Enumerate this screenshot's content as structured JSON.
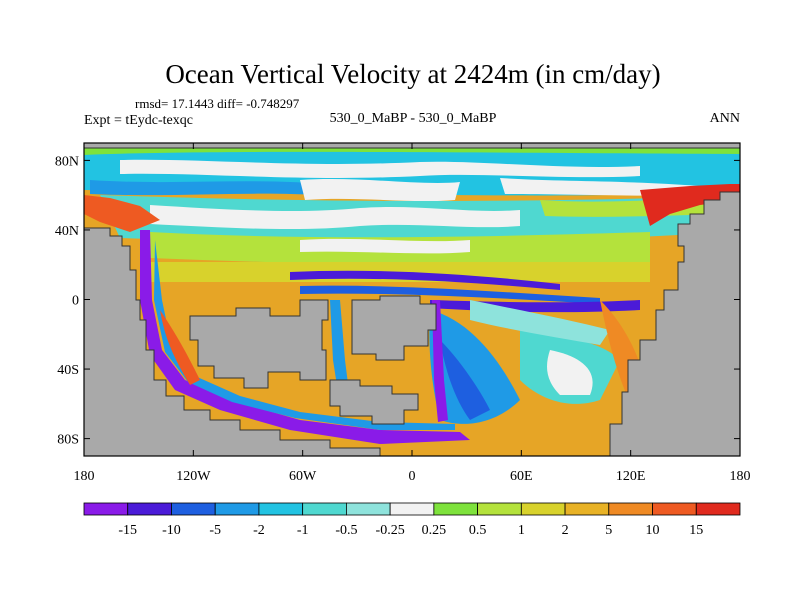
{
  "chart_data": {
    "type": "heatmap",
    "title": "Ocean Vertical Velocity at 2424m (in cm/day)",
    "stats_text": "rmsd= 17.1443 diff= -0.748297",
    "subtitle_center": "530_0_MaBP - 530_0_MaBP",
    "subtitle_left": "Expt = tEydc-texqc",
    "subtitle_right": "ANN",
    "x_ticks": [
      "180",
      "120W",
      "60W",
      "0",
      "60E",
      "120E",
      "180"
    ],
    "x_tick_values": [
      -180,
      -120,
      -60,
      0,
      60,
      120,
      180
    ],
    "y_ticks": [
      "80N",
      "40N",
      "0",
      "40S",
      "80S"
    ],
    "y_tick_values": [
      80,
      40,
      0,
      -40,
      -80
    ],
    "xlim": [
      -180,
      180
    ],
    "ylim": [
      -90,
      90
    ],
    "colorbar": {
      "labels": [
        "-15",
        "-10",
        "-5",
        "-2",
        "-1",
        "-0.5",
        "-0.25",
        "0.25",
        "0.5",
        "1",
        "2",
        "5",
        "10",
        "15"
      ],
      "colors": [
        "#8a1be8",
        "#4b1bd8",
        "#1e5fe0",
        "#1f9ae6",
        "#22c3e2",
        "#4fd8d0",
        "#8ee3dc",
        "#f2f2f2",
        "#7ee23c",
        "#b4e23c",
        "#d8d22c",
        "#e8b226",
        "#ef8a24",
        "#ee5a22",
        "#e02a1e"
      ]
    },
    "land_color": "#a9a9a9"
  }
}
